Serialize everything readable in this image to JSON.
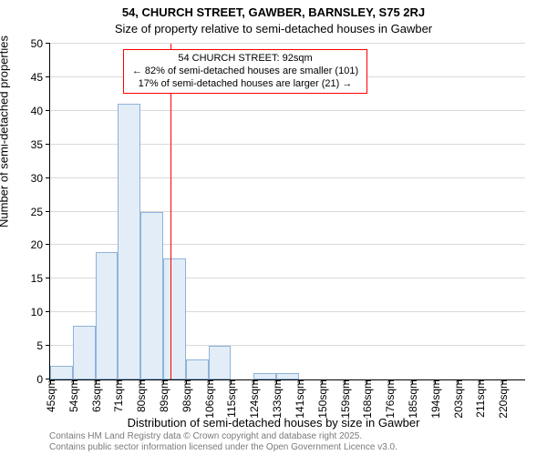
{
  "title_main": "54, CHURCH STREET, GAWBER, BARNSLEY, S75 2RJ",
  "title_sub": "Size of property relative to semi-detached houses in Gawber",
  "ylabel": "Number of semi-detached properties",
  "xlabel": "Distribution of semi-detached houses by size in Gawber",
  "chart": {
    "type": "histogram",
    "ylim": [
      0,
      50
    ],
    "ytick_step": 5,
    "x_bins": [
      45,
      54,
      63,
      71,
      80,
      89,
      98,
      106,
      115,
      124,
      133,
      141,
      150,
      159,
      168,
      176,
      185,
      194,
      203,
      211,
      220
    ],
    "values": [
      2,
      8,
      19,
      41,
      25,
      18,
      3,
      5,
      0,
      1,
      1,
      0,
      0,
      0,
      0,
      0,
      0,
      0,
      0,
      0
    ],
    "bar_fill": "#e2edf8",
    "bar_border": "#8fb3d9",
    "grid_color": "#d9d9d9",
    "background": "#ffffff",
    "marker_value": 92,
    "marker_color": "#ff0000"
  },
  "annotation": {
    "line1": "54 CHURCH STREET: 92sqm",
    "line2": "← 82% of semi-detached houses are smaller (101)",
    "line3": "17% of semi-detached houses are larger (21) →",
    "border_color": "#ff0000"
  },
  "footer": {
    "line1": "Contains HM Land Registry data © Crown copyright and database right 2025.",
    "line2": "Contains public sector information licensed under the Open Government Licence v3.0."
  },
  "x_unit": "sqm"
}
